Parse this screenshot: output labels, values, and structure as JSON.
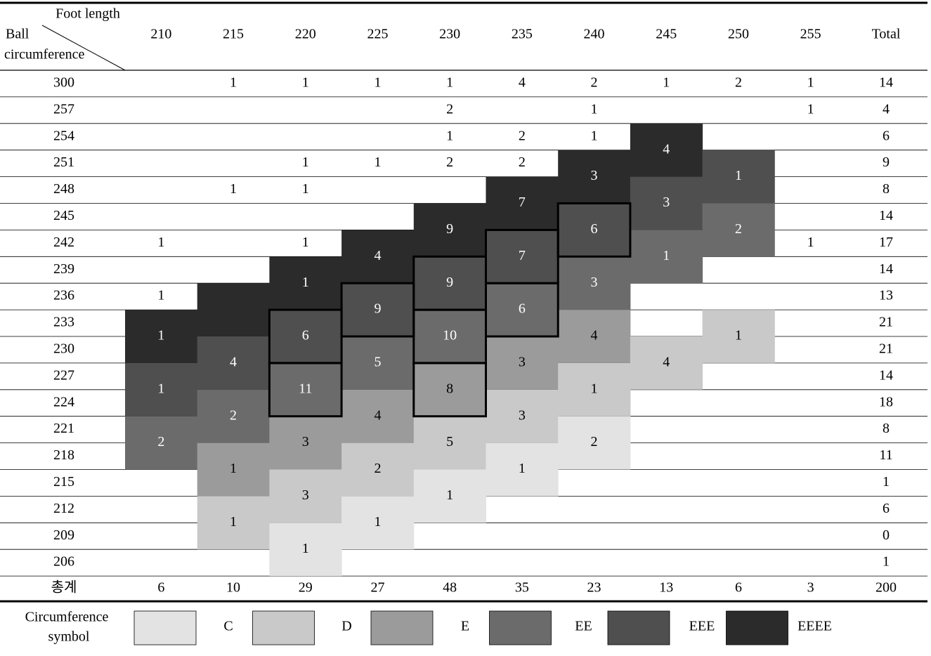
{
  "corner": {
    "top": "Foot length",
    "left": [
      "Ball",
      "circumference"
    ]
  },
  "columns": [
    "210",
    "215",
    "220",
    "225",
    "230",
    "235",
    "240",
    "245",
    "250",
    "255"
  ],
  "total_label": "Total",
  "rows": [
    {
      "label": "300",
      "cells": [
        null,
        1,
        1,
        1,
        1,
        4,
        2,
        1,
        2,
        1
      ],
      "total": 14
    },
    {
      "label": "257",
      "cells": [
        null,
        null,
        null,
        null,
        2,
        null,
        1,
        null,
        null,
        1
      ],
      "total": 4
    },
    {
      "label": "254",
      "cells": [
        null,
        null,
        null,
        null,
        1,
        2,
        1,
        null,
        null,
        null
      ],
      "total": 6
    },
    {
      "label": "251",
      "cells": [
        null,
        null,
        1,
        1,
        2,
        2,
        null,
        null,
        null,
        null
      ],
      "total": 9
    },
    {
      "label": "248",
      "cells": [
        null,
        1,
        1,
        null,
        null,
        null,
        null,
        null,
        null,
        null
      ],
      "total": 8
    },
    {
      "label": "245",
      "cells": [
        null,
        null,
        null,
        null,
        null,
        null,
        null,
        null,
        null,
        null
      ],
      "total": 14
    },
    {
      "label": "242",
      "cells": [
        1,
        null,
        1,
        null,
        null,
        null,
        null,
        null,
        null,
        1
      ],
      "total": 17
    },
    {
      "label": "239",
      "cells": [
        null,
        null,
        null,
        null,
        null,
        null,
        null,
        null,
        null,
        null
      ],
      "total": 14
    },
    {
      "label": "236",
      "cells": [
        1,
        null,
        null,
        null,
        null,
        null,
        null,
        null,
        null,
        null
      ],
      "total": 13
    },
    {
      "label": "233",
      "cells": [
        null,
        null,
        null,
        null,
        null,
        null,
        null,
        null,
        null,
        null
      ],
      "total": 21
    },
    {
      "label": "230",
      "cells": [
        null,
        null,
        null,
        null,
        null,
        null,
        null,
        null,
        null,
        null
      ],
      "total": 21
    },
    {
      "label": "227",
      "cells": [
        null,
        null,
        null,
        null,
        null,
        null,
        null,
        null,
        null,
        null
      ],
      "total": 14
    },
    {
      "label": "224",
      "cells": [
        null,
        null,
        null,
        null,
        null,
        null,
        null,
        null,
        null,
        null
      ],
      "total": 18
    },
    {
      "label": "221",
      "cells": [
        null,
        null,
        null,
        null,
        null,
        null,
        null,
        null,
        null,
        null
      ],
      "total": 8
    },
    {
      "label": "218",
      "cells": [
        null,
        null,
        null,
        null,
        null,
        null,
        null,
        null,
        null,
        null
      ],
      "total": 11
    },
    {
      "label": "215",
      "cells": [
        null,
        null,
        null,
        null,
        null,
        null,
        null,
        null,
        null,
        null
      ],
      "total": 1
    },
    {
      "label": "212",
      "cells": [
        null,
        null,
        null,
        null,
        null,
        null,
        null,
        null,
        null,
        null
      ],
      "total": 6
    },
    {
      "label": "209",
      "cells": [
        null,
        null,
        null,
        null,
        null,
        null,
        null,
        null,
        null,
        null
      ],
      "total": 0
    },
    {
      "label": "206",
      "cells": [
        null,
        null,
        null,
        null,
        null,
        null,
        null,
        null,
        null,
        null
      ],
      "total": 1
    }
  ],
  "blocks": [
    {
      "row": 9,
      "col": 0,
      "symbol": "EEEE",
      "value": 1
    },
    {
      "row": 11,
      "col": 0,
      "symbol": "EEE",
      "value": 1
    },
    {
      "row": 13,
      "col": 0,
      "symbol": "EE",
      "value": 2
    },
    {
      "row": 8,
      "col": 1,
      "symbol": "EEEE"
    },
    {
      "row": 10,
      "col": 1,
      "symbol": "EEE",
      "value": 4
    },
    {
      "row": 12,
      "col": 1,
      "symbol": "EE",
      "value": 2
    },
    {
      "row": 14,
      "col": 1,
      "symbol": "E",
      "value": 1
    },
    {
      "row": 16,
      "col": 1,
      "symbol": "D",
      "value": 1
    },
    {
      "row": 7,
      "col": 2,
      "symbol": "EEEE",
      "value": 1
    },
    {
      "row": 9,
      "col": 2,
      "symbol": "EEE",
      "value": 6,
      "outline": true
    },
    {
      "row": 11,
      "col": 2,
      "symbol": "EE",
      "value": 11,
      "outline": true
    },
    {
      "row": 13,
      "col": 2,
      "symbol": "E",
      "value": 3
    },
    {
      "row": 15,
      "col": 2,
      "symbol": "D",
      "value": 3
    },
    {
      "row": 17,
      "col": 2,
      "symbol": "C",
      "value": 1
    },
    {
      "row": 6,
      "col": 3,
      "symbol": "EEEE",
      "value": 4
    },
    {
      "row": 8,
      "col": 3,
      "symbol": "EEE",
      "value": 9,
      "outline": true
    },
    {
      "row": 10,
      "col": 3,
      "symbol": "EE",
      "value": 5
    },
    {
      "row": 12,
      "col": 3,
      "symbol": "E",
      "value": 4
    },
    {
      "row": 14,
      "col": 3,
      "symbol": "D",
      "value": 2
    },
    {
      "row": 16,
      "col": 3,
      "symbol": "C",
      "value": 1
    },
    {
      "row": 5,
      "col": 4,
      "symbol": "EEEE",
      "value": 9
    },
    {
      "row": 7,
      "col": 4,
      "symbol": "EEE",
      "value": 9,
      "outline": true
    },
    {
      "row": 9,
      "col": 4,
      "symbol": "EE",
      "value": 10,
      "outline": true
    },
    {
      "row": 11,
      "col": 4,
      "symbol": "E",
      "value": 8,
      "outline": true
    },
    {
      "row": 13,
      "col": 4,
      "symbol": "D",
      "value": 5
    },
    {
      "row": 15,
      "col": 4,
      "symbol": "C",
      "value": 1
    },
    {
      "row": 4,
      "col": 5,
      "symbol": "EEEE",
      "value": 7
    },
    {
      "row": 6,
      "col": 5,
      "symbol": "EEE",
      "value": 7,
      "outline": true
    },
    {
      "row": 8,
      "col": 5,
      "symbol": "EE",
      "value": 6,
      "outline": true
    },
    {
      "row": 10,
      "col": 5,
      "symbol": "E",
      "value": 3
    },
    {
      "row": 12,
      "col": 5,
      "symbol": "D",
      "value": 3
    },
    {
      "row": 14,
      "col": 5,
      "symbol": "C",
      "value": 1
    },
    {
      "row": 3,
      "col": 6,
      "symbol": "EEEE",
      "value": 3
    },
    {
      "row": 5,
      "col": 6,
      "symbol": "EEE",
      "value": 6,
      "outline": true
    },
    {
      "row": 7,
      "col": 6,
      "symbol": "EE",
      "value": 3
    },
    {
      "row": 9,
      "col": 6,
      "symbol": "E",
      "value": 4
    },
    {
      "row": 11,
      "col": 6,
      "symbol": "D",
      "value": 1
    },
    {
      "row": 13,
      "col": 6,
      "symbol": "C",
      "value": 2
    },
    {
      "row": 2,
      "col": 7,
      "symbol": "EEEE",
      "value": 4
    },
    {
      "row": 4,
      "col": 7,
      "symbol": "EEE",
      "value": 3
    },
    {
      "row": 6,
      "col": 7,
      "symbol": "EE",
      "value": 1
    },
    {
      "row": 10,
      "col": 7,
      "symbol": "D",
      "value": 4
    },
    {
      "row": 3,
      "col": 8,
      "symbol": "EEE",
      "value": 1
    },
    {
      "row": 5,
      "col": 8,
      "symbol": "EE",
      "value": 2
    },
    {
      "row": 9,
      "col": 8,
      "symbol": "D",
      "value": 1
    }
  ],
  "footer": {
    "label": "총계",
    "cells": [
      6,
      10,
      29,
      27,
      48,
      35,
      23,
      13,
      6,
      3
    ],
    "total": 200
  },
  "legend": {
    "label": [
      "Circumference",
      "symbol"
    ],
    "items": [
      {
        "symbol": "C",
        "color": "#e3e3e3"
      },
      {
        "symbol": "D",
        "color": "#c9c9c9"
      },
      {
        "symbol": "E",
        "color": "#9b9b9b"
      },
      {
        "symbol": "EE",
        "color": "#6b6b6b"
      },
      {
        "symbol": "EEE",
        "color": "#4f4f4f"
      },
      {
        "symbol": "EEEE",
        "color": "#2b2b2b"
      }
    ]
  }
}
